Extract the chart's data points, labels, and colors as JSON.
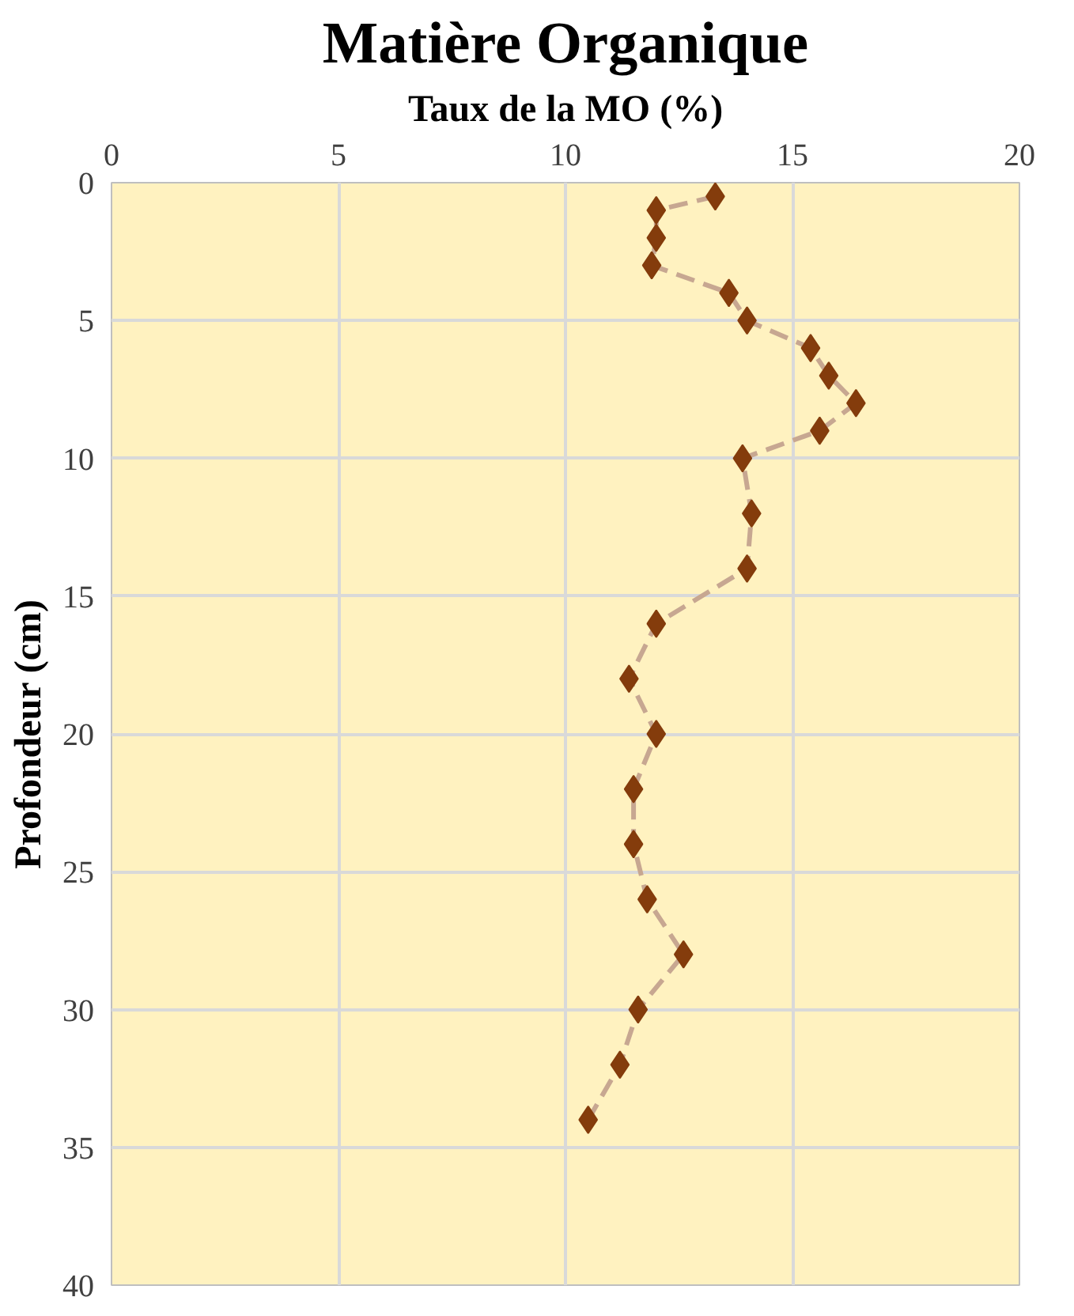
{
  "chart_data": {
    "type": "line",
    "title": "Matière Organique",
    "xlabel": "Taux de la MO (%)",
    "ylabel": "Profondeur (cm)",
    "x": [
      13.3,
      12.0,
      12.0,
      11.9,
      13.6,
      14.0,
      15.4,
      15.8,
      16.4,
      15.6,
      13.9,
      14.1,
      14.0,
      12.0,
      11.4,
      12.0,
      11.5,
      11.5,
      11.8,
      12.6,
      11.6,
      11.2,
      10.5
    ],
    "series": [
      {
        "color": "#843c0c",
        "values": [
          0.5,
          1,
          2,
          3,
          4,
          5,
          6,
          7,
          8,
          9,
          10,
          12,
          14,
          16,
          18,
          20,
          22,
          24,
          26,
          28,
          30,
          32,
          34
        ]
      }
    ],
    "xlim": [
      0,
      20
    ],
    "xticks": [
      0,
      5,
      10,
      15,
      20
    ],
    "ylim": [
      40,
      0
    ],
    "yticks": [
      0,
      5,
      10,
      15,
      20,
      25,
      30,
      35,
      40
    ],
    "grid": true,
    "marker": "diamond",
    "line_style": "dashed"
  }
}
